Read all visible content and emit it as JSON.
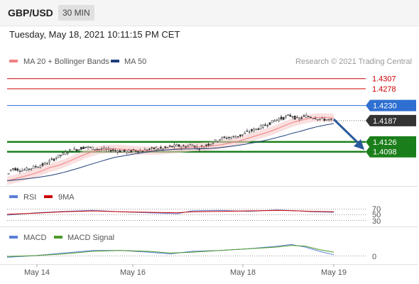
{
  "header": {
    "pair": "GBP/USD",
    "timeframe": "30 MIN"
  },
  "timestamp": "Tuesday, May 18, 2021 10:11:15 PM CET",
  "colors": {
    "red": "#cc0000",
    "blue": "#2e6fd1",
    "green": "#1a7f1a",
    "dark": "#333333",
    "bb_fill": "#f7c9c9",
    "ma20": "#f08080",
    "ma50": "#1f3f7a",
    "rsi": "#5b7fd6",
    "ma9": "#cc0000",
    "macd": "#5b7fd6",
    "signal": "#4c9a2a"
  },
  "chart_data": [
    {
      "type": "line",
      "legend": [
        {
          "name": "MA 20 + Bollinger Bands",
          "color": "#f08080"
        },
        {
          "name": "MA 50",
          "color": "#1f3f7a"
        }
      ],
      "credit": "Research © 2021 Trading Central",
      "x_ticks": [
        "May 14",
        "May 16",
        "May 18",
        "May 19"
      ],
      "ylim": [
        1.4,
        1.4345
      ],
      "price_path": [
        [
          0,
          1.4015
        ],
        [
          3,
          1.4045
        ],
        [
          10,
          1.405
        ],
        [
          20,
          1.4045
        ],
        [
          30,
          1.4048
        ],
        [
          40,
          1.4055
        ],
        [
          50,
          1.406
        ],
        [
          60,
          1.407
        ],
        [
          70,
          1.4082
        ],
        [
          80,
          1.4092
        ],
        [
          90,
          1.4103
        ],
        [
          100,
          1.4105
        ],
        [
          110,
          1.4112
        ],
        [
          120,
          1.4108
        ],
        [
          130,
          1.4105
        ],
        [
          140,
          1.4104
        ],
        [
          150,
          1.4103
        ],
        [
          160,
          1.41
        ],
        [
          170,
          1.4098
        ],
        [
          180,
          1.4102
        ],
        [
          190,
          1.41
        ],
        [
          200,
          1.4104
        ],
        [
          210,
          1.4108
        ],
        [
          220,
          1.4106
        ],
        [
          230,
          1.4112
        ],
        [
          240,
          1.4115
        ],
        [
          250,
          1.4112
        ],
        [
          260,
          1.4118
        ],
        [
          270,
          1.4108
        ],
        [
          280,
          1.4116
        ],
        [
          290,
          1.4125
        ],
        [
          300,
          1.4135
        ],
        [
          310,
          1.4138
        ],
        [
          320,
          1.414
        ],
        [
          330,
          1.4145
        ],
        [
          340,
          1.4155
        ],
        [
          350,
          1.4162
        ],
        [
          360,
          1.417
        ],
        [
          370,
          1.418
        ],
        [
          380,
          1.419
        ],
        [
          390,
          1.4195
        ],
        [
          400,
          1.4202
        ],
        [
          410,
          1.419
        ],
        [
          420,
          1.42
        ],
        [
          430,
          1.4198
        ],
        [
          440,
          1.4192
        ],
        [
          450,
          1.419
        ],
        [
          460,
          1.4187
        ]
      ],
      "levels": [
        {
          "label": "1.4307",
          "value": 1.4307,
          "style": "red"
        },
        {
          "label": "1.4278",
          "value": 1.4278,
          "style": "red"
        },
        {
          "label": "1.4230",
          "value": 1.423,
          "style": "blue"
        },
        {
          "label": "1.4187",
          "value": 1.4187,
          "style": "dark"
        },
        {
          "label": "1.4126",
          "value": 1.4126,
          "style": "green"
        },
        {
          "label": "1.4098",
          "value": 1.4098,
          "style": "green"
        }
      ]
    },
    {
      "type": "line",
      "legend": [
        {
          "name": "RSI",
          "color": "#5b7fd6"
        },
        {
          "name": "9MA",
          "color": "#cc0000"
        }
      ],
      "ylim": [
        20,
        80
      ],
      "y_ticks": [
        "70",
        "50",
        "30"
      ],
      "rsi": [
        [
          0,
          44
        ],
        [
          40,
          49
        ],
        [
          80,
          52
        ],
        [
          120,
          54
        ],
        [
          160,
          51
        ],
        [
          200,
          49
        ],
        [
          240,
          47
        ],
        [
          260,
          53
        ],
        [
          300,
          54
        ],
        [
          340,
          52
        ],
        [
          380,
          55
        ],
        [
          410,
          53
        ],
        [
          430,
          51
        ],
        [
          460,
          50
        ]
      ],
      "ma9": [
        [
          0,
          46
        ],
        [
          40,
          48
        ],
        [
          80,
          51
        ],
        [
          120,
          53
        ],
        [
          160,
          51
        ],
        [
          200,
          50
        ],
        [
          240,
          49
        ],
        [
          260,
          51
        ],
        [
          300,
          52
        ],
        [
          340,
          53
        ],
        [
          380,
          54
        ],
        [
          410,
          53
        ],
        [
          430,
          52
        ],
        [
          460,
          51
        ]
      ]
    },
    {
      "type": "line",
      "legend": [
        {
          "name": "MACD",
          "color": "#5b7fd6"
        },
        {
          "name": "MACD Signal",
          "color": "#4c9a2a"
        }
      ],
      "y_ticks": [
        "0"
      ],
      "ylim": [
        -20,
        26
      ],
      "macd": [
        [
          0,
          -2
        ],
        [
          40,
          0
        ],
        [
          80,
          3
        ],
        [
          120,
          6
        ],
        [
          160,
          6
        ],
        [
          200,
          4
        ],
        [
          230,
          2
        ],
        [
          260,
          5
        ],
        [
          300,
          6
        ],
        [
          340,
          8
        ],
        [
          380,
          11
        ],
        [
          400,
          13
        ],
        [
          420,
          10
        ],
        [
          440,
          5
        ],
        [
          460,
          1
        ]
      ],
      "signal": [
        [
          0,
          -1
        ],
        [
          40,
          0
        ],
        [
          80,
          2
        ],
        [
          120,
          5
        ],
        [
          160,
          6
        ],
        [
          200,
          5
        ],
        [
          230,
          3
        ],
        [
          260,
          4
        ],
        [
          300,
          6
        ],
        [
          340,
          8
        ],
        [
          380,
          10
        ],
        [
          400,
          12
        ],
        [
          420,
          11
        ],
        [
          440,
          7
        ],
        [
          460,
          4
        ]
      ]
    }
  ]
}
